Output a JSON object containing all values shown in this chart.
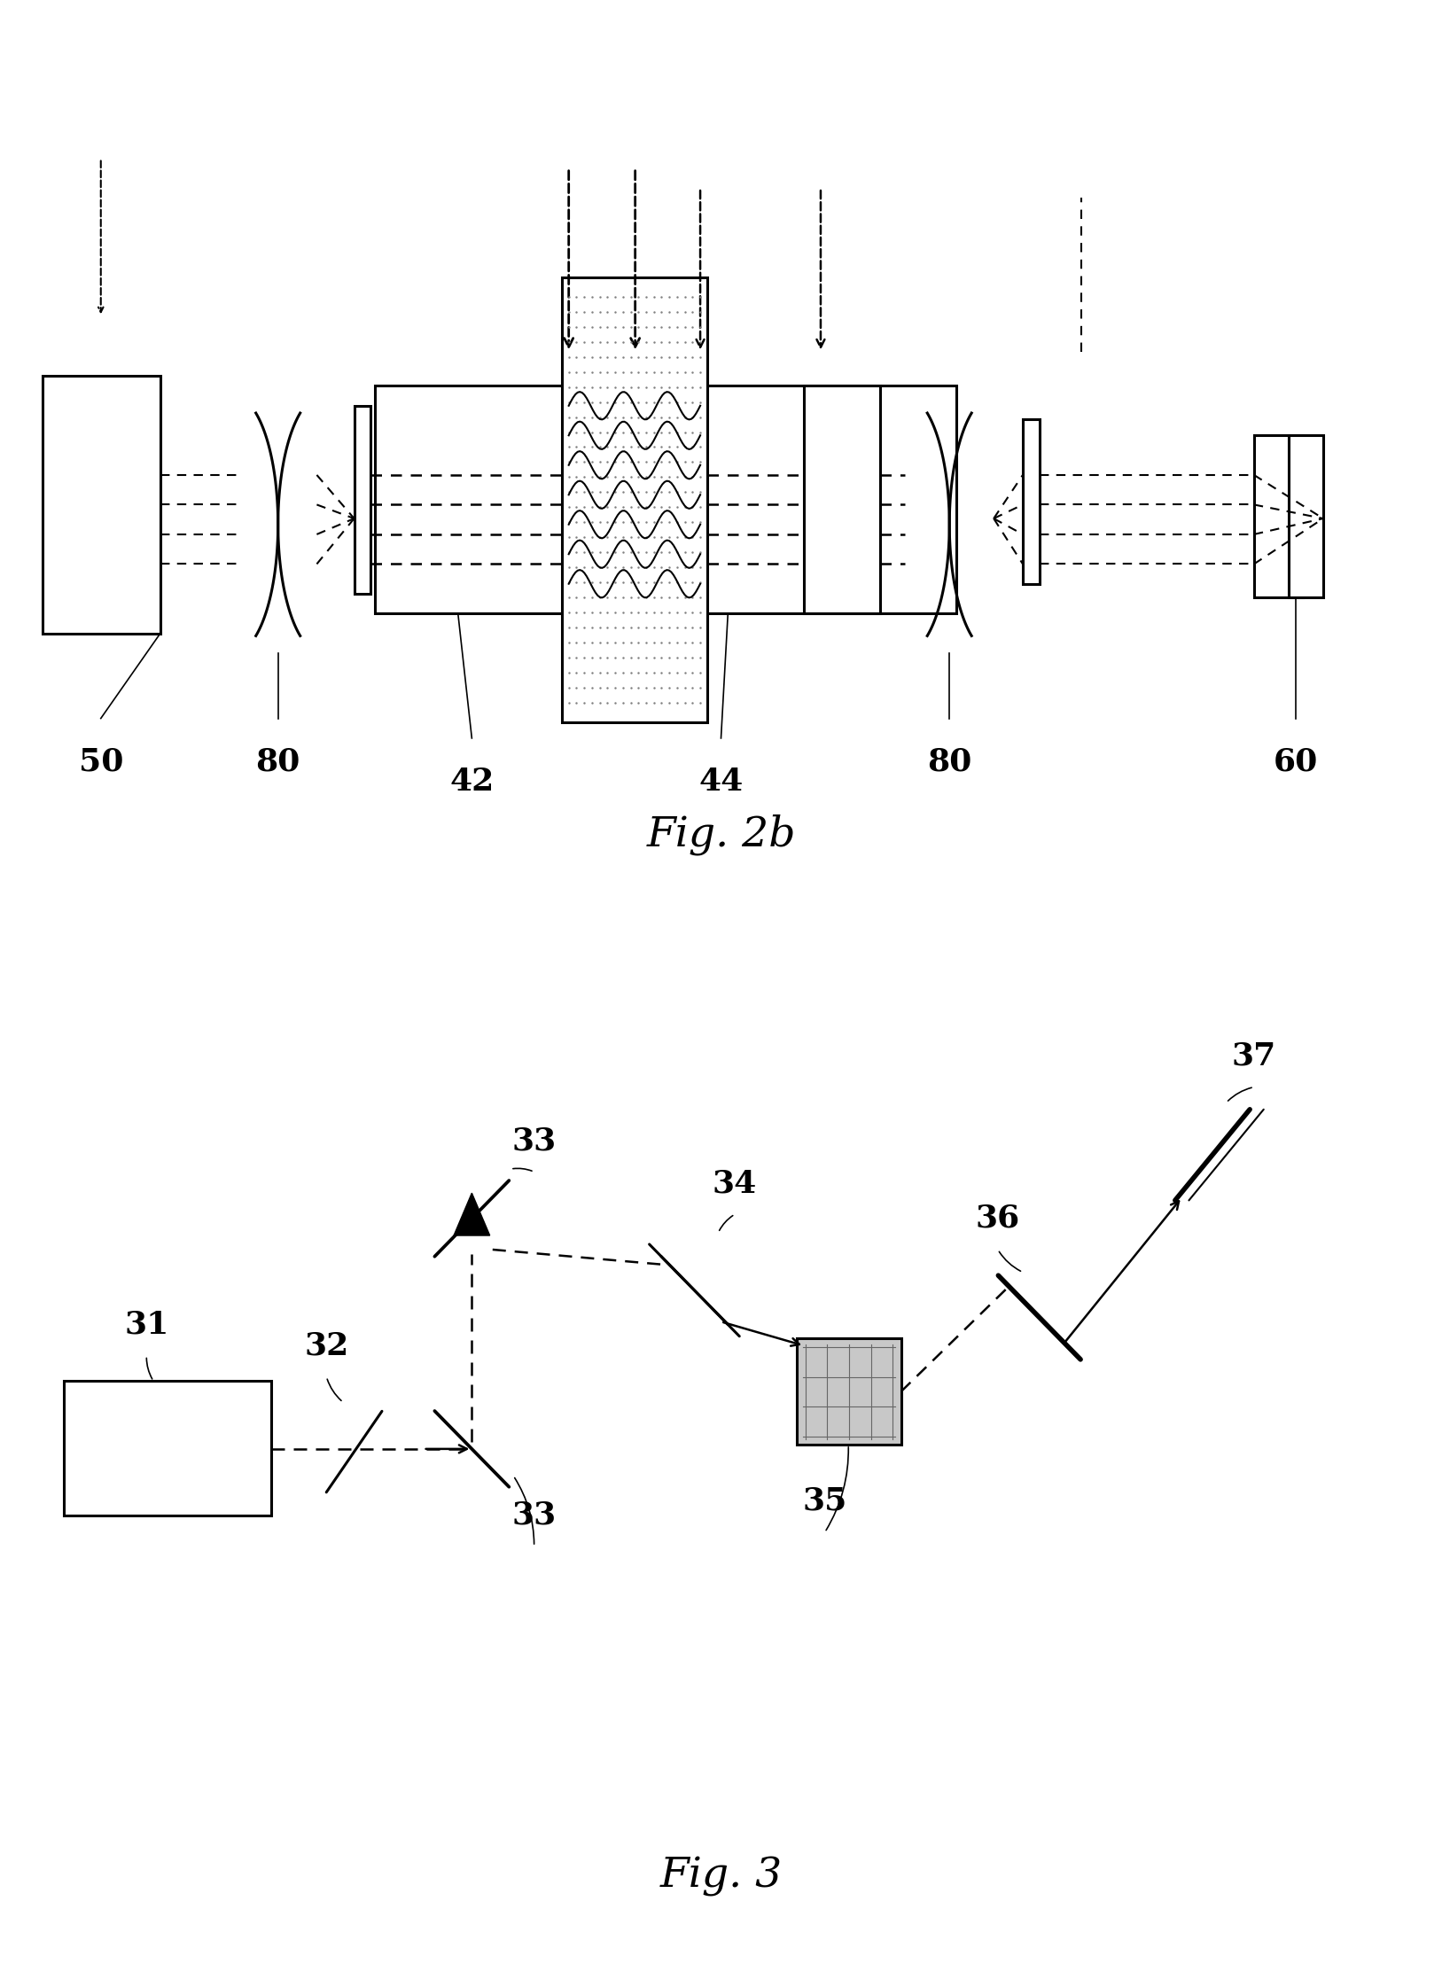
{
  "bg_color": "#ffffff",
  "line_color": "#000000",
  "fig2b_title": "Fig. 2b",
  "fig3_title": "Fig. 3",
  "label_fontsize": 26,
  "caption_fontsize": 34
}
